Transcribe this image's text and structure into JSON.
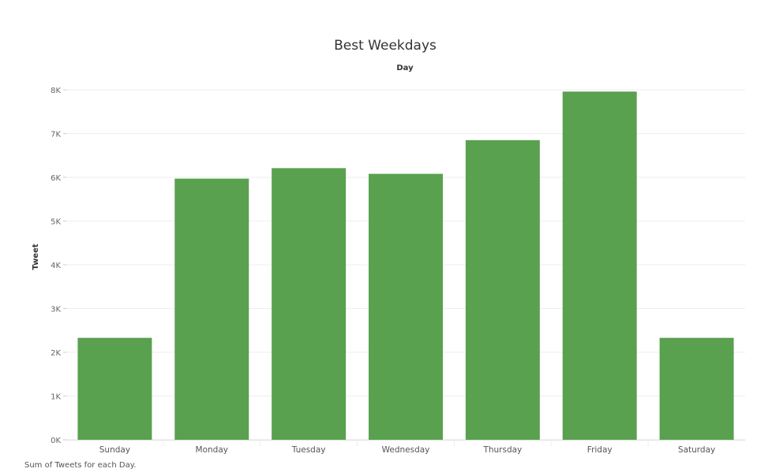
{
  "chart_data": {
    "type": "bar",
    "title": "Best Weekdays",
    "column_header": "Day",
    "ylabel": "Tweet",
    "xlabel": "",
    "categories": [
      "Sunday",
      "Monday",
      "Tuesday",
      "Wednesday",
      "Thursday",
      "Friday",
      "Saturday"
    ],
    "values": [
      2330,
      5970,
      6210,
      6080,
      6850,
      7960,
      2330
    ],
    "ylim": [
      0,
      8000
    ],
    "y_ticks": [
      0,
      1000,
      2000,
      3000,
      4000,
      5000,
      6000,
      7000,
      8000
    ],
    "y_tick_labels": [
      "0K",
      "1K",
      "2K",
      "3K",
      "4K",
      "5K",
      "6K",
      "7K",
      "8K"
    ],
    "bar_color": "#59a14f",
    "grid": true,
    "legend": "none",
    "caption": "Sum of Tweets for each Day."
  }
}
